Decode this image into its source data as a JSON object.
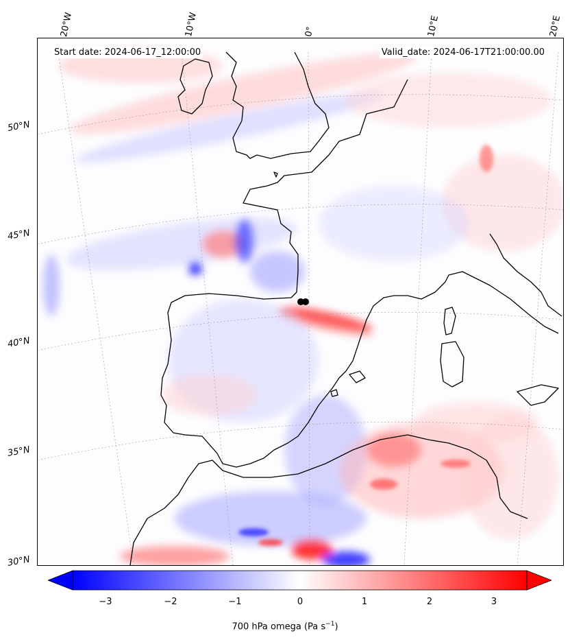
{
  "header": {
    "start_date": "Start date: 2024-06-17_12:00:00",
    "valid_date": "Valid_date: 2024-06-17T21:00:00.00"
  },
  "map": {
    "longitude_labels": [
      "20°W",
      "10°W",
      "0°",
      "10°E",
      "20°E"
    ],
    "latitude_labels": [
      "50°N",
      "45°N",
      "40°N",
      "35°N",
      "30°N"
    ],
    "coastline_color": "#000000",
    "gridline_color": "#999999",
    "field": "700 hPa omega",
    "marker_color": "#000000"
  },
  "colorbar": {
    "label_text": "700 hPa omega (Pa s",
    "label_exponent": "−1",
    "label_close": ")",
    "ticks": [
      "−3",
      "−2",
      "−1",
      "0",
      "1",
      "2",
      "3"
    ],
    "range": [
      -3.7,
      3.7
    ],
    "extend": "both",
    "colormap": "bwr",
    "low_color": "#0000ff",
    "mid_color": "#ffffff",
    "high_color": "#ff0000"
  }
}
